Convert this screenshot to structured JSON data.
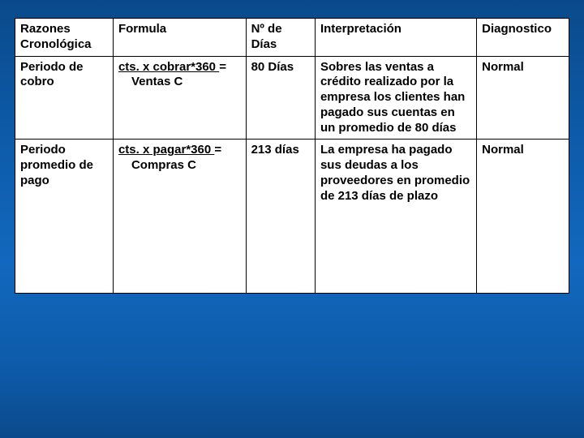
{
  "table": {
    "headers": {
      "razones": "Razones Cronológica",
      "formula": "Formula",
      "dias": "Nº de Días",
      "interp": "Interpretación",
      "diag": "Diagnostico"
    },
    "rows": [
      {
        "razones": "Periodo de cobro",
        "formula_top": "cts. x cobrar*360 ",
        "formula_eq": "=",
        "formula_bottom": "Ventas C",
        "dias": "80 Días",
        "interp": "Sobres las ventas a crédito realizado por la empresa los clientes han pagado sus cuentas en un promedio de 80 días",
        "diag": "Normal"
      },
      {
        "razones": "Periodo promedio de pago",
        "formula_top": "cts. x pagar*360 ",
        "formula_eq": "=",
        "formula_bottom": "Compras C",
        "dias": "213 días",
        "interp": "La empresa ha pagado sus deudas a los proveedores en promedio de 213 días de plazo",
        "diag": "Normal"
      }
    ],
    "colors": {
      "background_gradient_top": "#0a4a8a",
      "background_gradient_mid": "#1268be",
      "cell_bg": "#ffffff",
      "border": "#000000",
      "text": "#000000"
    },
    "font_size_pt": 15
  }
}
